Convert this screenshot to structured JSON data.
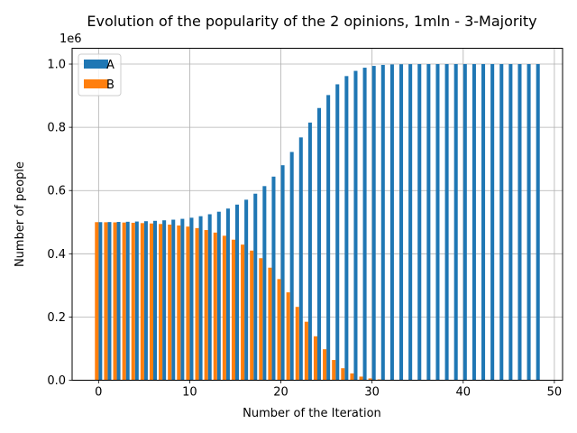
{
  "chart_data": {
    "type": "bar",
    "title": "Evolution of the popularity of the 2 opinions, 1mln - 3-Majority",
    "xlabel": "Number of the Iteration",
    "ylabel": "Number of people",
    "y_offset_text": "1e6",
    "x": [
      0,
      1,
      2,
      3,
      4,
      5,
      6,
      7,
      8,
      9,
      10,
      11,
      12,
      13,
      14,
      15,
      16,
      17,
      18,
      19,
      20,
      21,
      22,
      23,
      24,
      25,
      26,
      27,
      28,
      29,
      30,
      31,
      32,
      33,
      34,
      35,
      36,
      37,
      38,
      39,
      40,
      41,
      42,
      43,
      44,
      45,
      46,
      47,
      48
    ],
    "series": [
      {
        "name": "A",
        "color": "#1f77b4",
        "values": [
          500000,
          500300,
          500700,
          501200,
          502000,
          503000,
          504200,
          505800,
          507800,
          510500,
          514000,
          518800,
          525000,
          533000,
          543000,
          555500,
          571000,
          590000,
          614000,
          644000,
          680000,
          722000,
          768000,
          815000,
          861000,
          902000,
          936000,
          962000,
          978500,
          988500,
          994200,
          997300,
          998800,
          999500,
          999800,
          999950,
          999990,
          1000000,
          1000000,
          1000000,
          1000000,
          1000000,
          1000000,
          1000000,
          1000000,
          1000000,
          1000000,
          1000000,
          1000000
        ]
      },
      {
        "name": "B",
        "color": "#ff7f0e",
        "values": [
          500000,
          499700,
          499300,
          498800,
          498000,
          497000,
          495800,
          494200,
          492200,
          489500,
          486000,
          481200,
          475000,
          467000,
          457000,
          444500,
          429000,
          410000,
          386000,
          356000,
          320000,
          278000,
          232000,
          185000,
          139000,
          98000,
          64000,
          38000,
          21500,
          11500,
          5800,
          2700,
          1200,
          500,
          200,
          50,
          10,
          0,
          0,
          0,
          0,
          0,
          0,
          0,
          0,
          0,
          0,
          0,
          0
        ]
      }
    ],
    "xlim": [
      -2.9,
      50.9
    ],
    "ylim": [
      0,
      1050000
    ],
    "xticks": [
      0,
      10,
      20,
      30,
      40,
      50
    ],
    "yticks": [
      0,
      200000,
      400000,
      600000,
      800000,
      1000000
    ],
    "ytick_labels": [
      "0.0",
      "0.2",
      "0.4",
      "0.6",
      "0.8",
      "1.0"
    ],
    "grid": true,
    "legend_position": "upper-left"
  }
}
